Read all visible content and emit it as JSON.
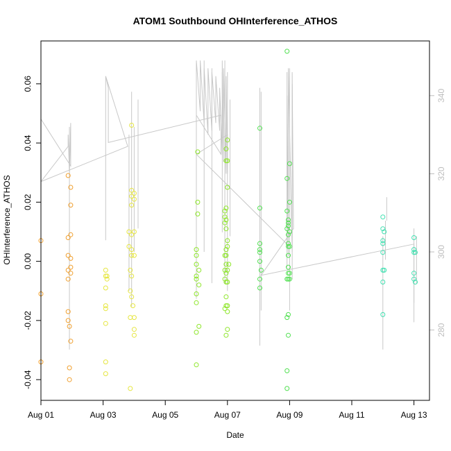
{
  "chart_data": {
    "type": "scatter",
    "title": "ATOM1 Southbound OHInterference_ATHOS",
    "xlabel": "Date",
    "ylabel": "OHInterference_ATHOS",
    "xlim": [
      "2016-08-01T00:00",
      "2016-08-13T12:00"
    ],
    "ylim": [
      -0.047,
      0.0745
    ],
    "y2lim": [
      262,
      354
    ],
    "x_ticks": [
      {
        "date": "2016-08-01",
        "label": "Aug 01"
      },
      {
        "date": "2016-08-03",
        "label": "Aug 03"
      },
      {
        "date": "2016-08-05",
        "label": "Aug 05"
      },
      {
        "date": "2016-08-07",
        "label": "Aug 07"
      },
      {
        "date": "2016-08-09",
        "label": "Aug 09"
      },
      {
        "date": "2016-08-11",
        "label": "Aug 11"
      },
      {
        "date": "2016-08-13",
        "label": "Aug 13"
      }
    ],
    "y_ticks": [
      {
        "value": -0.04,
        "label": "-0.04"
      },
      {
        "value": -0.02,
        "label": "-0.02"
      },
      {
        "value": 0.0,
        "label": "0.00"
      },
      {
        "value": 0.02,
        "label": "0.02"
      },
      {
        "value": 0.04,
        "label": "0.04"
      },
      {
        "value": 0.06,
        "label": "0.06"
      }
    ],
    "y2_ticks": [
      {
        "value": 280,
        "label": "280"
      },
      {
        "value": 300,
        "label": "300"
      },
      {
        "value": 320,
        "label": "320"
      },
      {
        "value": 340,
        "label": "340"
      }
    ],
    "line_color": "#c8c8c8",
    "line_series": [
      [
        "2016-08-01T00:00",
        334
      ],
      [
        "2016-08-01T00:00",
        318
      ],
      [
        "2016-08-01T21:00",
        327
      ],
      [
        "2016-08-01T21:00",
        330
      ],
      [
        "2016-08-01T22:00",
        320
      ],
      [
        "2016-08-01T23:00",
        333
      ],
      [
        "2016-08-01T23:00",
        322
      ],
      [
        "2016-08-01T00:00",
        334
      ],
      [
        "2016-08-01T00:00",
        318
      ],
      [
        "2016-08-03T19:00",
        327
      ],
      [
        "2016-08-03T02:00",
        345
      ],
      [
        "2016-08-03T02:00",
        303
      ],
      [
        "2016-08-03T02:00",
        345
      ],
      [
        "2016-08-03T04:00",
        342
      ],
      [
        "2016-08-03T04:00",
        328
      ],
      [
        "2016-08-06T19:00",
        335
      ],
      [
        "2016-08-06T19:00",
        325
      ],
      [
        "2016-08-06T00:00",
        335
      ],
      [
        "2016-08-06T00:00",
        349
      ],
      [
        "2016-08-06T03:00",
        336
      ],
      [
        "2016-08-06T03:00",
        349
      ],
      [
        "2016-08-06T06:00",
        333
      ],
      [
        "2016-08-06T06:00",
        347
      ],
      [
        "2016-08-06T09:00",
        330
      ],
      [
        "2016-08-06T09:00",
        347
      ],
      [
        "2016-08-06T12:00",
        331
      ],
      [
        "2016-08-06T12:00",
        346
      ],
      [
        "2016-08-06T15:00",
        333
      ],
      [
        "2016-08-06T15:00",
        345
      ],
      [
        "2016-08-06T18:00",
        331
      ],
      [
        "2016-08-06T18:00",
        342
      ],
      [
        "2016-08-06T20:00",
        325
      ],
      [
        "2016-08-06T20:00",
        349
      ],
      [
        "2016-08-06T21:00",
        323
      ],
      [
        "2016-08-06T21:00",
        347
      ],
      [
        "2016-08-06T23:00",
        320
      ],
      [
        "2016-08-06T23:00",
        345
      ],
      [
        "2016-08-07T00:00",
        320
      ],
      [
        "2016-08-07T00:00",
        330
      ],
      [
        "2016-08-06T00:00",
        325
      ],
      [
        "2016-08-08T22:00",
        302
      ],
      [
        "2016-08-08T22:00",
        340
      ],
      [
        "2016-08-08T23:00",
        299
      ],
      [
        "2016-08-08T23:00",
        347
      ],
      [
        "2016-08-09T02:00",
        300
      ],
      [
        "2016-08-09T02:00",
        346
      ],
      [
        "2016-08-09T03:00",
        306
      ],
      [
        "2016-08-08T02:00",
        294
      ],
      [
        "2016-08-13T00:00",
        302
      ],
      [
        "2016-08-13T00:00",
        287
      ]
    ],
    "spikes": [
      {
        "x": "2016-08-01T22:00",
        "lo": 275,
        "hi": 332
      },
      {
        "x": "2016-08-03T20:00",
        "lo": 290,
        "hi": 330
      },
      {
        "x": "2016-08-03T22:00",
        "lo": 286,
        "hi": 341
      },
      {
        "x": "2016-08-04T00:00",
        "lo": 300,
        "hi": 332
      },
      {
        "x": "2016-08-04T03:00",
        "lo": 306,
        "hi": 339
      },
      {
        "x": "2016-08-06T00:00",
        "lo": 288,
        "hi": 346
      },
      {
        "x": "2016-08-06T06:00",
        "lo": 300,
        "hi": 349
      },
      {
        "x": "2016-08-06T12:00",
        "lo": 292,
        "hi": 347
      },
      {
        "x": "2016-08-06T20:00",
        "lo": 305,
        "hi": 346
      },
      {
        "x": "2016-08-06T22:00",
        "lo": 292,
        "hi": 349
      },
      {
        "x": "2016-08-07T00:00",
        "lo": 290,
        "hi": 346
      },
      {
        "x": "2016-08-07T02:00",
        "lo": 304,
        "hi": 339
      },
      {
        "x": "2016-08-08T01:00",
        "lo": 276,
        "hi": 342
      },
      {
        "x": "2016-08-08T02:00",
        "lo": 285,
        "hi": 341
      },
      {
        "x": "2016-08-08T22:00",
        "lo": 296,
        "hi": 346
      },
      {
        "x": "2016-08-09T00:00",
        "lo": 285,
        "hi": 347
      },
      {
        "x": "2016-08-09T02:00",
        "lo": 293,
        "hi": 343
      },
      {
        "x": "2016-08-12T00:00",
        "lo": 275,
        "hi": 304
      },
      {
        "x": "2016-08-12T02:00",
        "lo": 298,
        "hi": 308
      },
      {
        "x": "2016-08-12T03:00",
        "lo": 308,
        "hi": 314
      },
      {
        "x": "2016-08-13T00:00",
        "lo": 282,
        "hi": 306
      },
      {
        "x": "2016-08-13T02:00",
        "lo": 292,
        "hi": 304
      }
    ],
    "point_groups": [
      {
        "color": "#f0a030",
        "points": [
          [
            "2016-08-01T00:00",
            0.007
          ],
          [
            "2016-08-01T00:00",
            -0.011
          ],
          [
            "2016-08-01T00:00",
            -0.034
          ],
          [
            "2016-08-01T21:00",
            0.029
          ],
          [
            "2016-08-01T21:00",
            0.008
          ],
          [
            "2016-08-01T21:00",
            0.002
          ],
          [
            "2016-08-01T21:00",
            -0.003
          ],
          [
            "2016-08-01T21:00",
            -0.006
          ],
          [
            "2016-08-01T21:00",
            -0.017
          ],
          [
            "2016-08-01T21:00",
            -0.02
          ],
          [
            "2016-08-01T22:00",
            -0.022
          ],
          [
            "2016-08-01T22:00",
            -0.036
          ],
          [
            "2016-08-01T22:00",
            -0.04
          ],
          [
            "2016-08-01T23:00",
            0.025
          ],
          [
            "2016-08-01T23:00",
            0.019
          ],
          [
            "2016-08-01T23:00",
            0.009
          ],
          [
            "2016-08-01T23:00",
            0.001
          ],
          [
            "2016-08-01T23:00",
            -0.002
          ],
          [
            "2016-08-01T23:00",
            -0.004
          ],
          [
            "2016-08-01T23:00",
            -0.027
          ]
        ]
      },
      {
        "color": "#e6e640",
        "points": [
          [
            "2016-08-03T02:00",
            -0.003
          ],
          [
            "2016-08-03T02:00",
            -0.005
          ],
          [
            "2016-08-03T02:00",
            -0.009
          ],
          [
            "2016-08-03T02:00",
            -0.015
          ],
          [
            "2016-08-03T02:00",
            -0.016
          ],
          [
            "2016-08-03T02:00",
            -0.021
          ],
          [
            "2016-08-03T02:00",
            -0.034
          ],
          [
            "2016-08-03T02:00",
            -0.038
          ],
          [
            "2016-08-03T03:00",
            -0.006
          ],
          [
            "2016-08-03T03:00",
            -0.005
          ],
          [
            "2016-08-03T20:00",
            0.01
          ],
          [
            "2016-08-03T20:00",
            0.005
          ],
          [
            "2016-08-03T21:00",
            -0.003
          ],
          [
            "2016-08-03T21:00",
            -0.01
          ],
          [
            "2016-08-03T21:00",
            -0.019
          ],
          [
            "2016-08-03T21:00",
            -0.043
          ],
          [
            "2016-08-03T22:00",
            0.046
          ],
          [
            "2016-08-03T22:00",
            0.024
          ],
          [
            "2016-08-03T22:00",
            0.022
          ],
          [
            "2016-08-03T22:00",
            0.019
          ],
          [
            "2016-08-03T22:00",
            0.009
          ],
          [
            "2016-08-03T22:00",
            0.004
          ],
          [
            "2016-08-03T22:00",
            0.002
          ],
          [
            "2016-08-03T22:00",
            -0.005
          ],
          [
            "2016-08-03T22:00",
            -0.012
          ],
          [
            "2016-08-03T23:00",
            -0.015
          ],
          [
            "2016-08-04T00:00",
            0.023
          ],
          [
            "2016-08-04T00:00",
            0.021
          ],
          [
            "2016-08-04T00:00",
            0.01
          ],
          [
            "2016-08-04T00:00",
            0.002
          ],
          [
            "2016-08-04T00:00",
            -0.019
          ],
          [
            "2016-08-04T00:00",
            -0.023
          ],
          [
            "2016-08-04T00:00",
            -0.025
          ]
        ]
      },
      {
        "color": "#8ee62a",
        "points": [
          [
            "2016-08-06T00:00",
            0.004
          ],
          [
            "2016-08-06T00:00",
            0.002
          ],
          [
            "2016-08-06T00:00",
            -0.001
          ],
          [
            "2016-08-06T00:00",
            -0.005
          ],
          [
            "2016-08-06T00:00",
            -0.006
          ],
          [
            "2016-08-06T00:00",
            -0.011
          ],
          [
            "2016-08-06T00:00",
            -0.014
          ],
          [
            "2016-08-06T00:00",
            -0.024
          ],
          [
            "2016-08-06T00:00",
            -0.035
          ],
          [
            "2016-08-06T01:00",
            0.037
          ],
          [
            "2016-08-06T01:00",
            0.02
          ],
          [
            "2016-08-06T01:00",
            0.016
          ],
          [
            "2016-08-06T02:00",
            -0.003
          ],
          [
            "2016-08-06T02:00",
            -0.008
          ],
          [
            "2016-08-06T02:00",
            -0.022
          ],
          [
            "2016-08-06T22:00",
            0.017
          ],
          [
            "2016-08-06T22:00",
            0.015
          ],
          [
            "2016-08-06T22:00",
            0.013
          ],
          [
            "2016-08-06T22:00",
            0.002
          ],
          [
            "2016-08-06T22:00",
            -0.003
          ],
          [
            "2016-08-06T22:00",
            -0.006
          ],
          [
            "2016-08-06T22:00",
            -0.016
          ],
          [
            "2016-08-06T23:00",
            0.038
          ],
          [
            "2016-08-06T23:00",
            0.034
          ],
          [
            "2016-08-06T23:00",
            0.018
          ],
          [
            "2016-08-06T23:00",
            0.014
          ],
          [
            "2016-08-06T23:00",
            0.011
          ],
          [
            "2016-08-06T23:00",
            0.004
          ],
          [
            "2016-08-06T23:00",
            0.002
          ],
          [
            "2016-08-06T23:00",
            -0.001
          ],
          [
            "2016-08-06T23:00",
            -0.004
          ],
          [
            "2016-08-06T23:00",
            -0.007
          ],
          [
            "2016-08-06T23:00",
            -0.012
          ],
          [
            "2016-08-06T23:00",
            -0.015
          ],
          [
            "2016-08-06T23:00",
            -0.025
          ],
          [
            "2016-08-07T00:00",
            0.041
          ],
          [
            "2016-08-07T00:00",
            0.034
          ],
          [
            "2016-08-07T00:00",
            0.025
          ],
          [
            "2016-08-07T00:00",
            0.007
          ],
          [
            "2016-08-07T00:00",
            0.005
          ],
          [
            "2016-08-07T00:00",
            -0.003
          ],
          [
            "2016-08-07T00:00",
            -0.007
          ],
          [
            "2016-08-07T00:00",
            -0.015
          ],
          [
            "2016-08-07T00:00",
            -0.017
          ],
          [
            "2016-08-07T00:00",
            -0.023
          ],
          [
            "2016-08-07T01:00",
            -0.001
          ]
        ]
      },
      {
        "color": "#50e050",
        "points": [
          [
            "2016-08-08T01:00",
            0.045
          ],
          [
            "2016-08-08T01:00",
            0.018
          ],
          [
            "2016-08-08T01:00",
            0.006
          ],
          [
            "2016-08-08T01:00",
            0.004
          ],
          [
            "2016-08-08T01:00",
            0.003
          ],
          [
            "2016-08-08T01:00",
            0.0
          ],
          [
            "2016-08-08T01:00",
            -0.006
          ],
          [
            "2016-08-08T01:00",
            -0.009
          ],
          [
            "2016-08-08T02:00",
            -0.003
          ],
          [
            "2016-08-08T22:00",
            0.071
          ],
          [
            "2016-08-08T22:00",
            0.028
          ],
          [
            "2016-08-08T22:00",
            0.017
          ],
          [
            "2016-08-08T22:00",
            0.011
          ],
          [
            "2016-08-08T22:00",
            -0.006
          ],
          [
            "2016-08-08T22:00",
            -0.019
          ],
          [
            "2016-08-08T22:00",
            -0.037
          ],
          [
            "2016-08-08T22:00",
            -0.043
          ],
          [
            "2016-08-08T23:00",
            0.014
          ],
          [
            "2016-08-08T23:00",
            0.013
          ],
          [
            "2016-08-08T23:00",
            0.012
          ],
          [
            "2016-08-08T23:00",
            0.009
          ],
          [
            "2016-08-08T23:00",
            0.006
          ],
          [
            "2016-08-08T23:00",
            0.005
          ],
          [
            "2016-08-08T23:00",
            0.002
          ],
          [
            "2016-08-08T23:00",
            -0.002
          ],
          [
            "2016-08-08T23:00",
            -0.004
          ],
          [
            "2016-08-08T23:00",
            -0.006
          ],
          [
            "2016-08-08T23:00",
            -0.018
          ],
          [
            "2016-08-08T23:00",
            -0.025
          ],
          [
            "2016-08-09T00:00",
            0.033
          ],
          [
            "2016-08-09T00:00",
            0.02
          ],
          [
            "2016-08-09T00:00",
            0.01
          ],
          [
            "2016-08-09T00:00",
            0.005
          ],
          [
            "2016-08-09T00:00",
            -0.004
          ],
          [
            "2016-08-09T00:00",
            -0.006
          ]
        ]
      },
      {
        "color": "#40e0b0",
        "points": [
          [
            "2016-08-12T00:00",
            0.015
          ],
          [
            "2016-08-12T00:00",
            0.011
          ],
          [
            "2016-08-12T00:00",
            0.007
          ],
          [
            "2016-08-12T00:00",
            0.006
          ],
          [
            "2016-08-12T00:00",
            0.003
          ],
          [
            "2016-08-12T00:00",
            -0.003
          ],
          [
            "2016-08-12T00:00",
            -0.007
          ],
          [
            "2016-08-12T00:00",
            -0.018
          ],
          [
            "2016-08-12T01:00",
            0.01
          ],
          [
            "2016-08-12T01:00",
            -0.003
          ],
          [
            "2016-08-13T00:00",
            0.008
          ],
          [
            "2016-08-13T00:00",
            0.004
          ],
          [
            "2016-08-13T00:00",
            0.003
          ],
          [
            "2016-08-13T00:00",
            -0.004
          ],
          [
            "2016-08-13T00:00",
            -0.006
          ],
          [
            "2016-08-13T01:00",
            0.003
          ],
          [
            "2016-08-13T01:00",
            -0.007
          ]
        ]
      }
    ]
  }
}
